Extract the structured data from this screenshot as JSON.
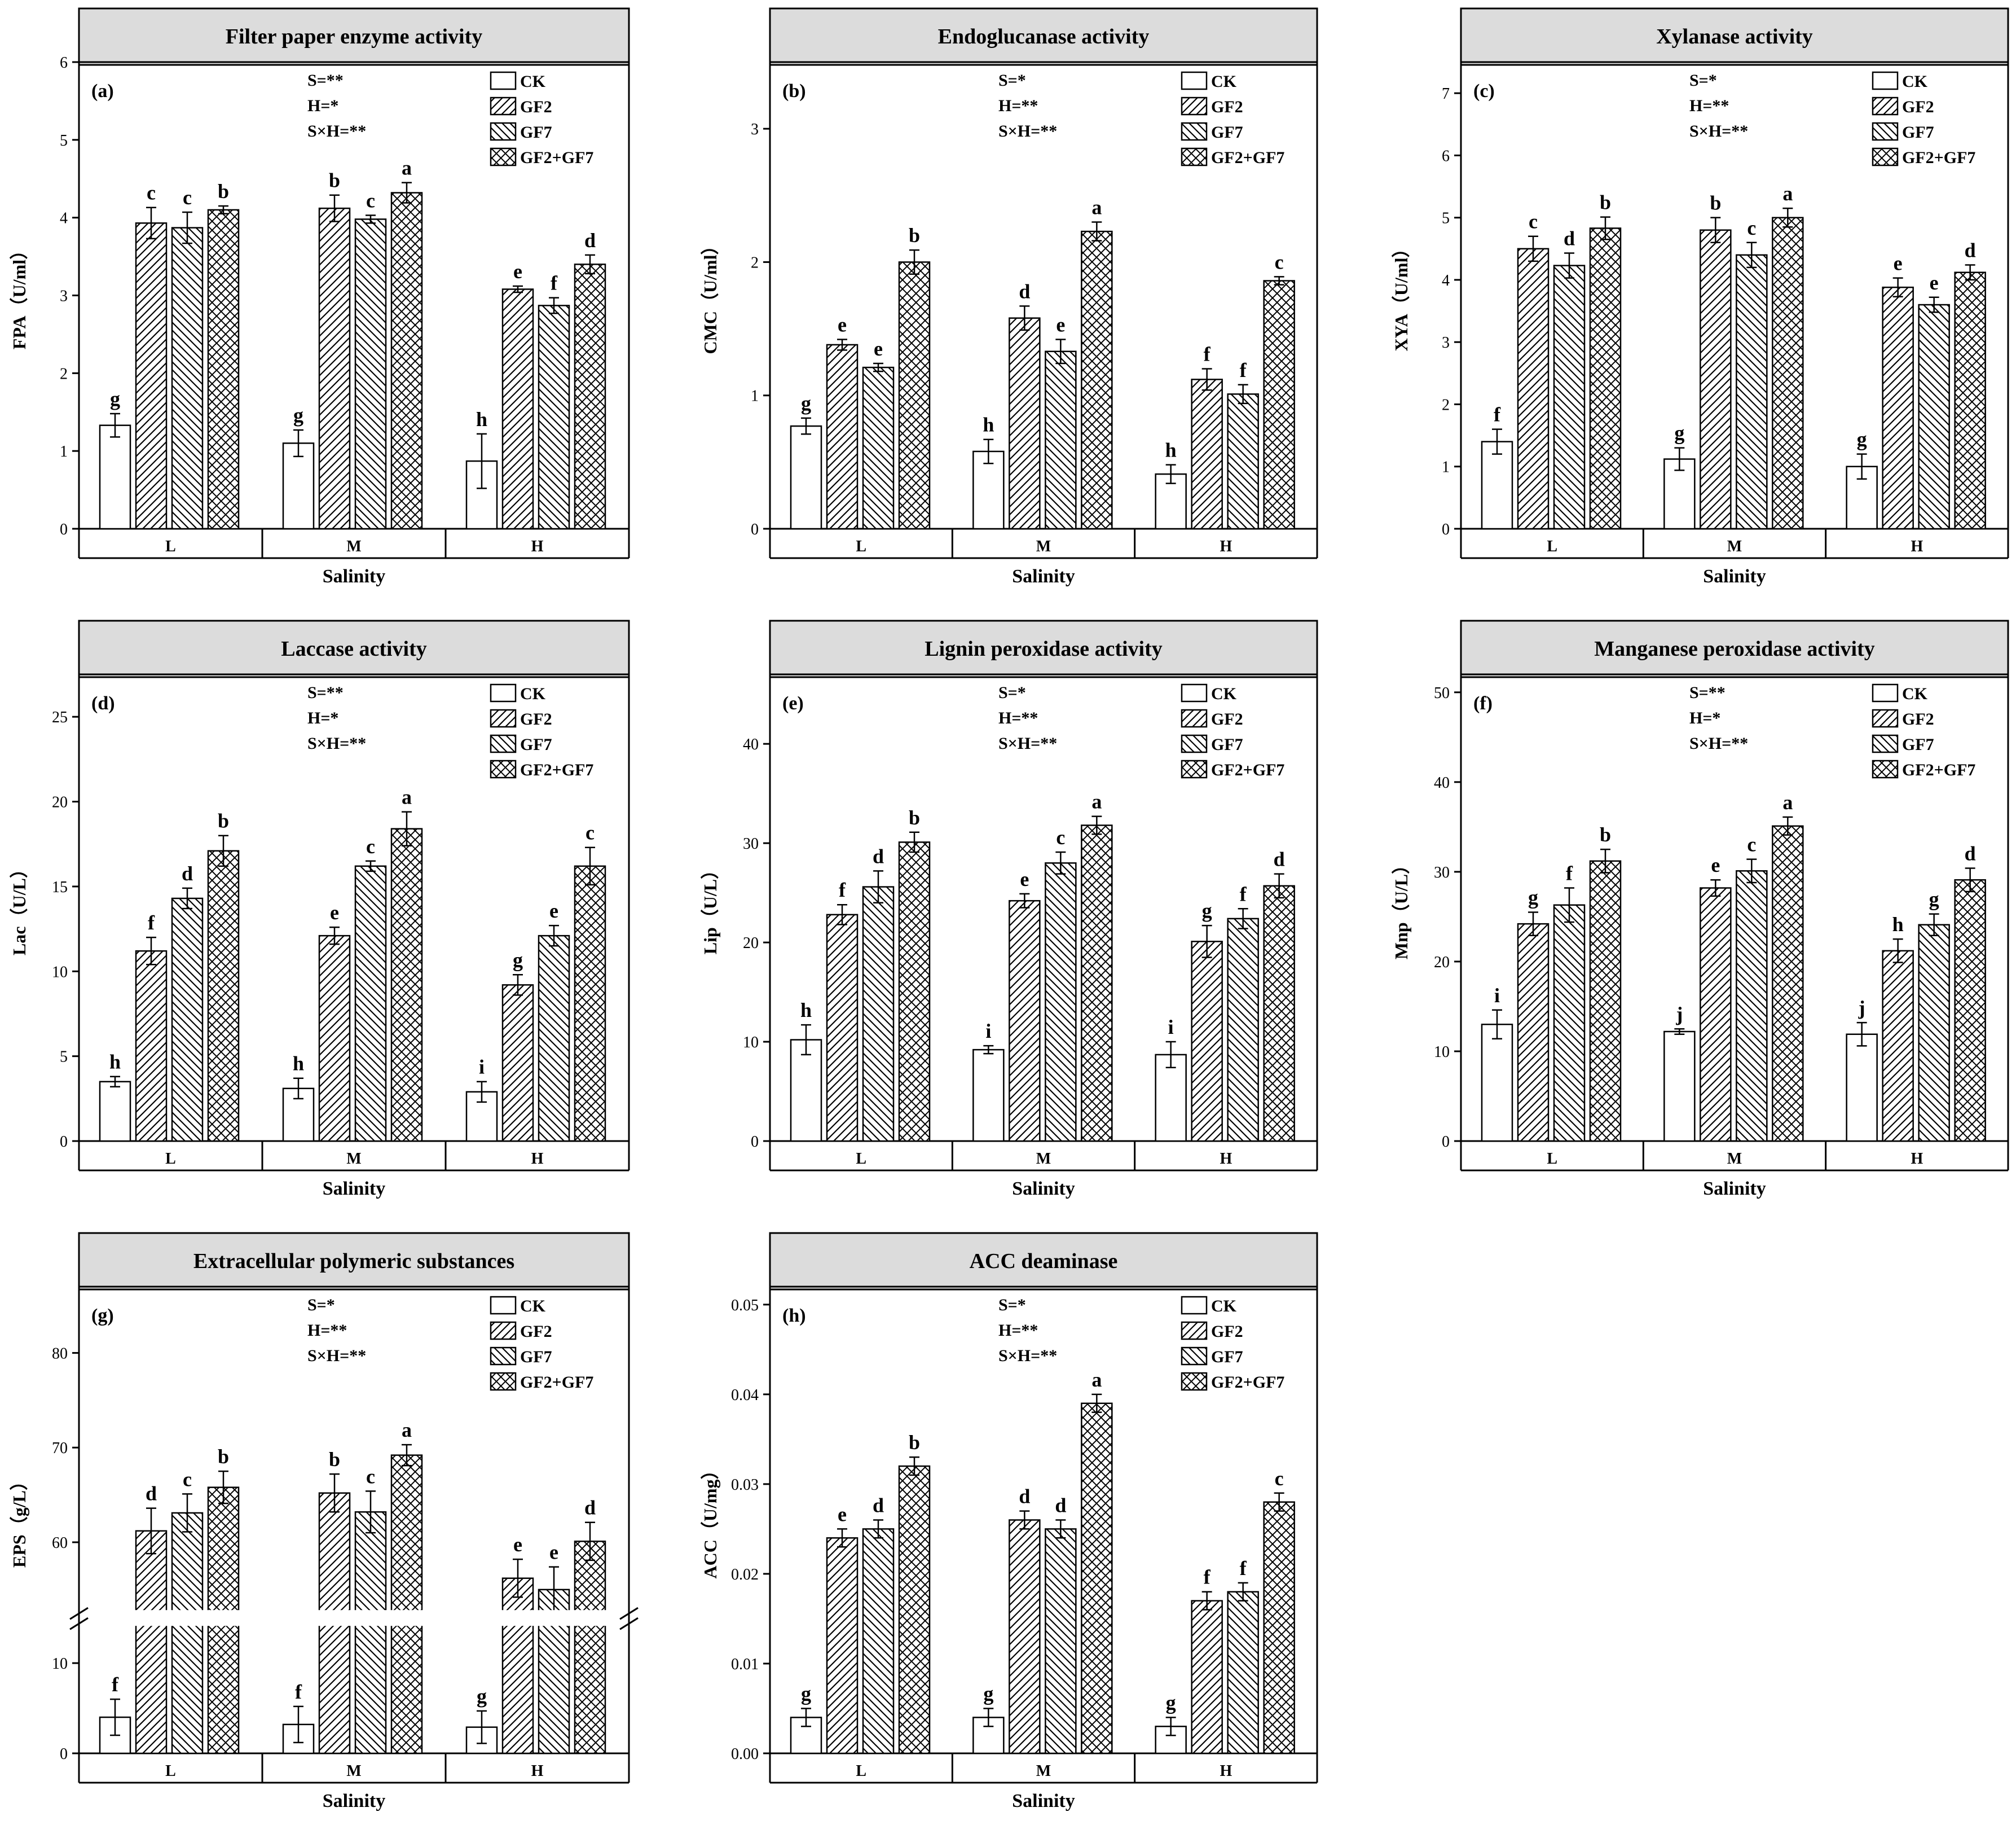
{
  "figure": {
    "groups": [
      "CK",
      "GF2",
      "GF7",
      "GF2+GF7"
    ],
    "x_title": "Salinity"
  },
  "chart_data": [
    {
      "panel": "(a)",
      "type": "bar",
      "title": "Filter paper enzyme activity",
      "ylabel": "FPA（U/ml）",
      "xlabel": "Salinity",
      "ylim": [
        0,
        6
      ],
      "yticks": [
        0,
        1,
        2,
        3,
        4,
        5,
        6
      ],
      "ytick_labels": [
        "0",
        "1",
        "2",
        "3",
        "4",
        "5",
        "6"
      ],
      "categories": [
        "L",
        "M",
        "H"
      ],
      "stats": [
        "S=**",
        "H=*",
        "S×H=**"
      ],
      "series": [
        {
          "name": "CK",
          "values": [
            1.33,
            1.1,
            0.87
          ],
          "errors": [
            0.15,
            0.17,
            0.35
          ],
          "letters": [
            "g",
            "g",
            "h"
          ]
        },
        {
          "name": "GF2",
          "values": [
            3.93,
            4.12,
            3.08
          ],
          "errors": [
            0.2,
            0.17,
            0.04
          ],
          "letters": [
            "c",
            "b",
            "e"
          ]
        },
        {
          "name": "GF7",
          "values": [
            3.87,
            3.98,
            2.87
          ],
          "errors": [
            0.2,
            0.05,
            0.1
          ],
          "letters": [
            "c",
            "c",
            "f"
          ]
        },
        {
          "name": "GF2+GF7",
          "values": [
            4.1,
            4.32,
            3.4
          ],
          "errors": [
            0.05,
            0.13,
            0.12
          ],
          "letters": [
            "b",
            "a",
            "d"
          ]
        }
      ]
    },
    {
      "panel": "(b)",
      "type": "bar",
      "title": "Endoglucanase activity",
      "ylabel": "CMC（U/ml）",
      "xlabel": "Salinity",
      "ylim": [
        0,
        3.5
      ],
      "yticks": [
        0,
        1,
        2,
        3
      ],
      "ytick_labels": [
        "0",
        "1",
        "2",
        "3"
      ],
      "categories": [
        "L",
        "M",
        "H"
      ],
      "stats": [
        "S=*",
        "H=**",
        "S×H=**"
      ],
      "series": [
        {
          "name": "CK",
          "values": [
            0.77,
            0.58,
            0.41
          ],
          "errors": [
            0.06,
            0.09,
            0.07
          ],
          "letters": [
            "g",
            "h",
            "h"
          ]
        },
        {
          "name": "GF2",
          "values": [
            1.38,
            1.58,
            1.12
          ],
          "errors": [
            0.04,
            0.09,
            0.08
          ],
          "letters": [
            "e",
            "d",
            "f"
          ]
        },
        {
          "name": "GF7",
          "values": [
            1.21,
            1.33,
            1.01
          ],
          "errors": [
            0.03,
            0.09,
            0.07
          ],
          "letters": [
            "e",
            "e",
            "f"
          ]
        },
        {
          "name": "GF2+GF7",
          "values": [
            2.0,
            2.23,
            1.86
          ],
          "errors": [
            0.09,
            0.07,
            0.03
          ],
          "letters": [
            "b",
            "a",
            "c"
          ]
        }
      ]
    },
    {
      "panel": "(c)",
      "type": "bar",
      "title": "Xylanase activity",
      "ylabel": "XYA（U/ml）",
      "xlabel": "Salinity",
      "ylim": [
        0,
        7.5
      ],
      "yticks": [
        0,
        1,
        2,
        3,
        4,
        5,
        6,
        7
      ],
      "ytick_labels": [
        "0",
        "1",
        "2",
        "3",
        "4",
        "5",
        "6",
        "7"
      ],
      "categories": [
        "L",
        "M",
        "H"
      ],
      "stats": [
        "S=*",
        "H=**",
        "S×H=**"
      ],
      "series": [
        {
          "name": "CK",
          "values": [
            1.4,
            1.12,
            1.0
          ],
          "errors": [
            0.2,
            0.18,
            0.2
          ],
          "letters": [
            "f",
            "g",
            "g"
          ]
        },
        {
          "name": "GF2",
          "values": [
            4.5,
            4.8,
            3.88
          ],
          "errors": [
            0.2,
            0.2,
            0.15
          ],
          "letters": [
            "c",
            "b",
            "e"
          ]
        },
        {
          "name": "GF7",
          "values": [
            4.23,
            4.4,
            3.6
          ],
          "errors": [
            0.2,
            0.2,
            0.12
          ],
          "letters": [
            "d",
            "c",
            "e"
          ]
        },
        {
          "name": "GF2+GF7",
          "values": [
            4.83,
            5.0,
            4.12
          ],
          "errors": [
            0.18,
            0.15,
            0.12
          ],
          "letters": [
            "b",
            "a",
            "d"
          ]
        }
      ]
    },
    {
      "panel": "(d)",
      "type": "bar",
      "title": "Laccase  activity",
      "ylabel": "Lac（U/L）",
      "xlabel": "Salinity",
      "ylim": [
        0,
        27.5
      ],
      "yticks": [
        0,
        5,
        10,
        15,
        20,
        25
      ],
      "ytick_labels": [
        "0",
        "5",
        "10",
        "15",
        "20",
        "25"
      ],
      "categories": [
        "L",
        "M",
        "H"
      ],
      "stats": [
        "S=**",
        "H=*",
        "S×H=**"
      ],
      "series": [
        {
          "name": "CK",
          "values": [
            3.5,
            3.1,
            2.9
          ],
          "errors": [
            0.3,
            0.6,
            0.6
          ],
          "letters": [
            "h",
            "h",
            "i"
          ]
        },
        {
          "name": "GF2",
          "values": [
            11.2,
            12.1,
            9.2
          ],
          "errors": [
            0.8,
            0.5,
            0.6
          ],
          "letters": [
            "f",
            "e",
            "g"
          ]
        },
        {
          "name": "GF7",
          "values": [
            14.3,
            16.2,
            12.1
          ],
          "errors": [
            0.6,
            0.3,
            0.6
          ],
          "letters": [
            "d",
            "c",
            "e"
          ]
        },
        {
          "name": "GF2+GF7",
          "values": [
            17.1,
            18.4,
            16.2
          ],
          "errors": [
            0.9,
            1.0,
            1.1
          ],
          "letters": [
            "b",
            "a",
            "c"
          ]
        }
      ]
    },
    {
      "panel": "(e)",
      "type": "bar",
      "title": "Lignin peroxidase activity",
      "ylabel": "Lip（U/L）",
      "xlabel": "Salinity",
      "ylim": [
        0,
        47
      ],
      "yticks": [
        0,
        10,
        20,
        30,
        40
      ],
      "ytick_labels": [
        "0",
        "10",
        "20",
        "30",
        "40"
      ],
      "categories": [
        "L",
        "M",
        "H"
      ],
      "stats": [
        "S=*",
        "H=**",
        "S×H=**"
      ],
      "series": [
        {
          "name": "CK",
          "values": [
            10.2,
            9.2,
            8.7
          ],
          "errors": [
            1.5,
            0.4,
            1.3
          ],
          "letters": [
            "h",
            "i",
            "i"
          ]
        },
        {
          "name": "GF2",
          "values": [
            22.8,
            24.2,
            20.1
          ],
          "errors": [
            1.0,
            0.7,
            1.6
          ],
          "letters": [
            "f",
            "e",
            "g"
          ]
        },
        {
          "name": "GF7",
          "values": [
            25.6,
            28.0,
            22.4
          ],
          "errors": [
            1.6,
            1.1,
            1.0
          ],
          "letters": [
            "d",
            "c",
            "f"
          ]
        },
        {
          "name": "GF2+GF7",
          "values": [
            30.1,
            31.8,
            25.7
          ],
          "errors": [
            1.0,
            0.9,
            1.2
          ],
          "letters": [
            "b",
            "a",
            "d"
          ]
        }
      ]
    },
    {
      "panel": "(f)",
      "type": "bar",
      "title": "Manganese peroxidase activity",
      "ylabel": "Mnp（U/L）",
      "xlabel": "Salinity",
      "ylim": [
        0,
        52
      ],
      "yticks": [
        0,
        10,
        20,
        30,
        40,
        50
      ],
      "ytick_labels": [
        "0",
        "10",
        "20",
        "30",
        "40",
        "50"
      ],
      "categories": [
        "L",
        "M",
        "H"
      ],
      "stats": [
        "S=**",
        "H=*",
        "S×H=**"
      ],
      "series": [
        {
          "name": "CK",
          "values": [
            13.0,
            12.2,
            11.9
          ],
          "errors": [
            1.6,
            0.3,
            1.3
          ],
          "letters": [
            "i",
            "j",
            "j"
          ]
        },
        {
          "name": "GF2",
          "values": [
            24.2,
            28.2,
            21.2
          ],
          "errors": [
            1.3,
            0.9,
            1.3
          ],
          "letters": [
            "g",
            "e",
            "h"
          ]
        },
        {
          "name": "GF7",
          "values": [
            26.3,
            30.1,
            24.1
          ],
          "errors": [
            1.9,
            1.3,
            1.2
          ],
          "letters": [
            "f",
            "c",
            "g"
          ]
        },
        {
          "name": "GF2+GF7",
          "values": [
            31.2,
            35.1,
            29.1
          ],
          "errors": [
            1.3,
            1.0,
            1.3
          ],
          "letters": [
            "b",
            "a",
            "d"
          ]
        }
      ]
    },
    {
      "panel": "(g)",
      "type": "bar",
      "title": "Extracellular polymeric substances",
      "ylabel": "EPS（g/L）",
      "xlabel": "Salinity",
      "axis_break": {
        "lower_range": [
          0,
          15
        ],
        "upper_range": [
          52,
          87
        ]
      },
      "yticks": [
        0,
        10,
        60,
        70,
        80
      ],
      "ytick_labels": [
        "0",
        "10",
        "60",
        "70",
        "80"
      ],
      "categories": [
        "L",
        "M",
        "H"
      ],
      "stats": [
        "S=*",
        "H=**",
        "S×H=**"
      ],
      "series": [
        {
          "name": "CK",
          "values": [
            4.0,
            3.2,
            2.9
          ],
          "errors": [
            2.0,
            2.0,
            1.8
          ],
          "letters": [
            "f",
            "f",
            "g"
          ]
        },
        {
          "name": "GF2",
          "values": [
            61.2,
            65.2,
            56.2
          ],
          "errors": [
            2.4,
            2.0,
            2.0
          ],
          "letters": [
            "d",
            "b",
            "e"
          ]
        },
        {
          "name": "GF7",
          "values": [
            63.1,
            63.2,
            55.0
          ],
          "errors": [
            2.0,
            2.2,
            2.4
          ],
          "letters": [
            "c",
            "c",
            "e"
          ]
        },
        {
          "name": "GF2+GF7",
          "values": [
            65.8,
            69.2,
            60.1
          ],
          "errors": [
            1.7,
            1.1,
            2.0
          ],
          "letters": [
            "b",
            "a",
            "d"
          ]
        }
      ]
    },
    {
      "panel": "(h)",
      "type": "bar",
      "title": "ACC deaminase",
      "ylabel": "ACC（U/mg）",
      "xlabel": "Salinity",
      "ylim": [
        0,
        0.052
      ],
      "yticks": [
        0,
        0.01,
        0.02,
        0.03,
        0.04,
        0.05
      ],
      "ytick_labels": [
        "0.00",
        "0.01",
        "0.02",
        "0.03",
        "0.04",
        "0.05"
      ],
      "categories": [
        "L",
        "M",
        "H"
      ],
      "stats": [
        "S=*",
        "H=**",
        "S×H=**"
      ],
      "series": [
        {
          "name": "CK",
          "values": [
            0.004,
            0.004,
            0.003
          ],
          "errors": [
            0.001,
            0.001,
            0.001
          ],
          "letters": [
            "g",
            "g",
            "g"
          ]
        },
        {
          "name": "GF2",
          "values": [
            0.024,
            0.026,
            0.017
          ],
          "errors": [
            0.001,
            0.001,
            0.001
          ],
          "letters": [
            "e",
            "d",
            "f"
          ]
        },
        {
          "name": "GF7",
          "values": [
            0.025,
            0.025,
            0.018
          ],
          "errors": [
            0.001,
            0.001,
            0.001
          ],
          "letters": [
            "d",
            "d",
            "f"
          ]
        },
        {
          "name": "GF2+GF7",
          "values": [
            0.032,
            0.039,
            0.028
          ],
          "errors": [
            0.001,
            0.001,
            0.001
          ],
          "letters": [
            "b",
            "a",
            "c"
          ]
        }
      ]
    }
  ]
}
